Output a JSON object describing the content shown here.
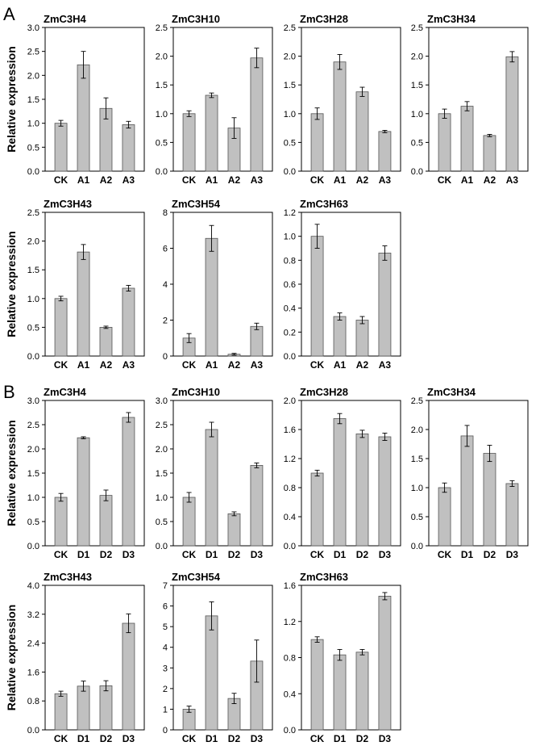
{
  "figure": {
    "panel_labels": [
      "A",
      "B"
    ],
    "ylabel": "Relative expression",
    "bar_color": "#c0c0c0",
    "bar_stroke": "#555555"
  },
  "chart_data": [
    {
      "type": "bar",
      "panel": "A",
      "title": "ZmC3H4",
      "categories": [
        "CK",
        "A1",
        "A2",
        "A3"
      ],
      "values": [
        1.0,
        2.22,
        1.31,
        0.97
      ],
      "errors": [
        0.06,
        0.28,
        0.22,
        0.07
      ],
      "ylim": [
        0,
        3.0
      ],
      "yticks": [
        "0.0",
        "0.5",
        "1.0",
        "1.5",
        "2.0",
        "2.5",
        "3.0"
      ]
    },
    {
      "type": "bar",
      "panel": "A",
      "title": "ZmC3H10",
      "categories": [
        "CK",
        "A1",
        "A2",
        "A3"
      ],
      "values": [
        1.0,
        1.32,
        0.75,
        1.97
      ],
      "errors": [
        0.05,
        0.04,
        0.18,
        0.17
      ],
      "ylim": [
        0,
        2.5
      ],
      "yticks": [
        "0.0",
        "0.5",
        "1.0",
        "1.5",
        "2.0",
        "2.5"
      ]
    },
    {
      "type": "bar",
      "panel": "A",
      "title": "ZmC3H28",
      "categories": [
        "CK",
        "A1",
        "A2",
        "A3"
      ],
      "values": [
        1.0,
        1.9,
        1.38,
        0.69
      ],
      "errors": [
        0.1,
        0.13,
        0.08,
        0.02
      ],
      "ylim": [
        0,
        2.5
      ],
      "yticks": [
        "0.0",
        "0.5",
        "1.0",
        "1.5",
        "2.0",
        "2.5"
      ]
    },
    {
      "type": "bar",
      "panel": "A",
      "title": "ZmC3H34",
      "categories": [
        "CK",
        "A1",
        "A2",
        "A3"
      ],
      "values": [
        1.0,
        1.13,
        0.62,
        1.99
      ],
      "errors": [
        0.08,
        0.08,
        0.02,
        0.09
      ],
      "ylim": [
        0,
        2.5
      ],
      "yticks": [
        "0.0",
        "0.5",
        "1.0",
        "1.5",
        "2.0",
        "2.5"
      ]
    },
    {
      "type": "bar",
      "panel": "A",
      "title": "ZmC3H43",
      "categories": [
        "CK",
        "A1",
        "A2",
        "A3"
      ],
      "values": [
        1.0,
        1.81,
        0.5,
        1.18
      ],
      "errors": [
        0.04,
        0.13,
        0.02,
        0.05
      ],
      "ylim": [
        0,
        2.5
      ],
      "yticks": [
        "0.0",
        "0.5",
        "1.0",
        "1.5",
        "2.0",
        "2.5"
      ]
    },
    {
      "type": "bar",
      "panel": "A",
      "title": "ZmC3H54",
      "categories": [
        "CK",
        "A1",
        "A2",
        "A3"
      ],
      "values": [
        1.0,
        6.55,
        0.1,
        1.65
      ],
      "errors": [
        0.25,
        0.72,
        0.05,
        0.18
      ],
      "ylim": [
        0,
        8
      ],
      "yticks": [
        "0",
        "2",
        "4",
        "6",
        "8"
      ]
    },
    {
      "type": "bar",
      "panel": "A",
      "title": "ZmC3H63",
      "categories": [
        "CK",
        "A1",
        "A2",
        "A3"
      ],
      "values": [
        1.0,
        0.33,
        0.3,
        0.86
      ],
      "errors": [
        0.1,
        0.03,
        0.03,
        0.06
      ],
      "ylim": [
        0,
        1.2
      ],
      "yticks": [
        "0.0",
        "0.2",
        "0.4",
        "0.6",
        "0.8",
        "1.0",
        "1.2"
      ]
    },
    {
      "type": "bar",
      "panel": "B",
      "title": "ZmC3H4",
      "categories": [
        "CK",
        "D1",
        "D2",
        "D3"
      ],
      "values": [
        1.0,
        2.23,
        1.04,
        2.65
      ],
      "errors": [
        0.08,
        0.02,
        0.11,
        0.1
      ],
      "ylim": [
        0,
        3.0
      ],
      "yticks": [
        "0.0",
        "0.5",
        "1.0",
        "1.5",
        "2.0",
        "2.5",
        "3.0"
      ]
    },
    {
      "type": "bar",
      "panel": "B",
      "title": "ZmC3H10",
      "categories": [
        "CK",
        "D1",
        "D2",
        "D3"
      ],
      "values": [
        1.0,
        2.4,
        0.66,
        1.66
      ],
      "errors": [
        0.1,
        0.15,
        0.04,
        0.05
      ],
      "ylim": [
        0,
        3.0
      ],
      "yticks": [
        "0.0",
        "0.5",
        "1.0",
        "1.5",
        "2.0",
        "2.5",
        "3.0"
      ]
    },
    {
      "type": "bar",
      "panel": "B",
      "title": "ZmC3H28",
      "categories": [
        "CK",
        "D1",
        "D2",
        "D3"
      ],
      "values": [
        1.0,
        1.75,
        1.54,
        1.5
      ],
      "errors": [
        0.04,
        0.07,
        0.05,
        0.05
      ],
      "ylim": [
        0,
        2.0
      ],
      "yticks": [
        "0.0",
        "0.4",
        "0.8",
        "1.2",
        "1.6",
        "2.0"
      ]
    },
    {
      "type": "bar",
      "panel": "B",
      "title": "ZmC3H34",
      "categories": [
        "CK",
        "D1",
        "D2",
        "D3"
      ],
      "values": [
        1.0,
        1.89,
        1.59,
        1.07
      ],
      "errors": [
        0.08,
        0.18,
        0.14,
        0.05
      ],
      "ylim": [
        0,
        2.5
      ],
      "yticks": [
        "0.0",
        "0.5",
        "1.0",
        "1.5",
        "2.0",
        "2.5"
      ]
    },
    {
      "type": "bar",
      "panel": "B",
      "title": "ZmC3H43",
      "categories": [
        "CK",
        "D1",
        "D2",
        "D3"
      ],
      "values": [
        1.0,
        1.21,
        1.22,
        2.95
      ],
      "errors": [
        0.07,
        0.14,
        0.14,
        0.26
      ],
      "ylim": [
        0,
        4.0
      ],
      "yticks": [
        "0.0",
        "0.8",
        "1.6",
        "2.4",
        "3.2",
        "4.0"
      ]
    },
    {
      "type": "bar",
      "panel": "B",
      "title": "ZmC3H54",
      "categories": [
        "CK",
        "D1",
        "D2",
        "D3"
      ],
      "values": [
        1.0,
        5.52,
        1.52,
        3.33
      ],
      "errors": [
        0.15,
        0.68,
        0.25,
        1.02
      ],
      "ylim": [
        0,
        7
      ],
      "yticks": [
        "0",
        "1",
        "2",
        "3",
        "4",
        "5",
        "6",
        "7"
      ]
    },
    {
      "type": "bar",
      "panel": "B",
      "title": "ZmC3H63",
      "categories": [
        "CK",
        "D1",
        "D2",
        "D3"
      ],
      "values": [
        1.0,
        0.83,
        0.86,
        1.48
      ],
      "errors": [
        0.03,
        0.06,
        0.03,
        0.04
      ],
      "ylim": [
        0,
        1.6
      ],
      "yticks": [
        "0.0",
        "0.4",
        "0.8",
        "1.2",
        "1.6"
      ]
    }
  ]
}
